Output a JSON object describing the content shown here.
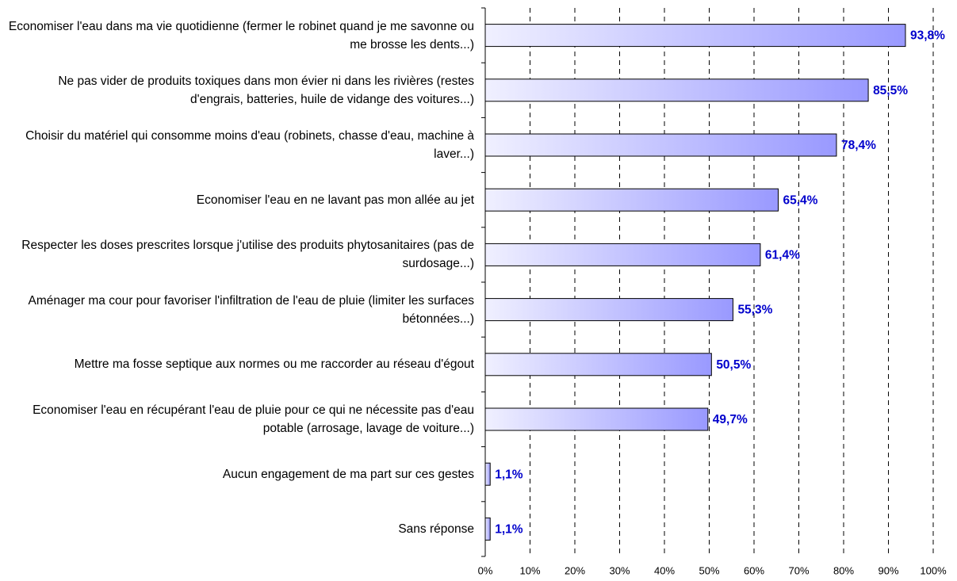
{
  "chart_data": {
    "type": "barh",
    "categories": [
      "Economiser l'eau dans ma vie quotidienne (fermer le robinet quand je me savonne ou me brosse les dents...)",
      "Ne pas vider de produits toxiques dans mon évier ni dans les rivières (restes d'engrais, batteries, huile de vidange des voitures...)",
      "Choisir du matériel qui consomme moins d'eau (robinets, chasse d'eau, machine à laver...)",
      "Economiser l'eau en ne lavant pas mon allée au jet",
      "Respecter les doses prescrites lorsque j'utilise des produits phytosanitaires (pas de surdosage...)",
      "Aménager ma cour pour favoriser l'infiltration de l'eau de pluie (limiter les surfaces bétonnées...)",
      "Mettre ma fosse septique aux normes ou me raccorder au réseau d'égout",
      "Economiser l'eau en récupérant l'eau de pluie pour ce qui ne nécessite pas d'eau potable (arrosage, lavage de voiture...)",
      "Aucun engagement de ma part sur ces gestes",
      "Sans réponse"
    ],
    "values": [
      93.8,
      85.5,
      78.4,
      65.4,
      61.4,
      55.3,
      50.5,
      49.7,
      1.1,
      1.1
    ],
    "value_labels": [
      "93,8%",
      "85,5%",
      "78,4%",
      "65,4%",
      "61,4%",
      "55,3%",
      "50,5%",
      "49,7%",
      "1,1%",
      "1,1%"
    ],
    "color": "#9999ff",
    "xlim": [
      0,
      100
    ],
    "xticks": [
      {
        "value": 0,
        "label": "0%"
      },
      {
        "value": 10,
        "label": "10%"
      },
      {
        "value": 20,
        "label": "20%"
      },
      {
        "value": 30,
        "label": "30%"
      },
      {
        "value": 40,
        "label": "40%"
      },
      {
        "value": 50,
        "label": "50%"
      },
      {
        "value": 60,
        "label": "60%"
      },
      {
        "value": 70,
        "label": "70%"
      },
      {
        "value": 80,
        "label": "80%"
      },
      {
        "value": 90,
        "label": "90%"
      },
      {
        "value": 100,
        "label": "100%"
      }
    ],
    "grid": true
  }
}
